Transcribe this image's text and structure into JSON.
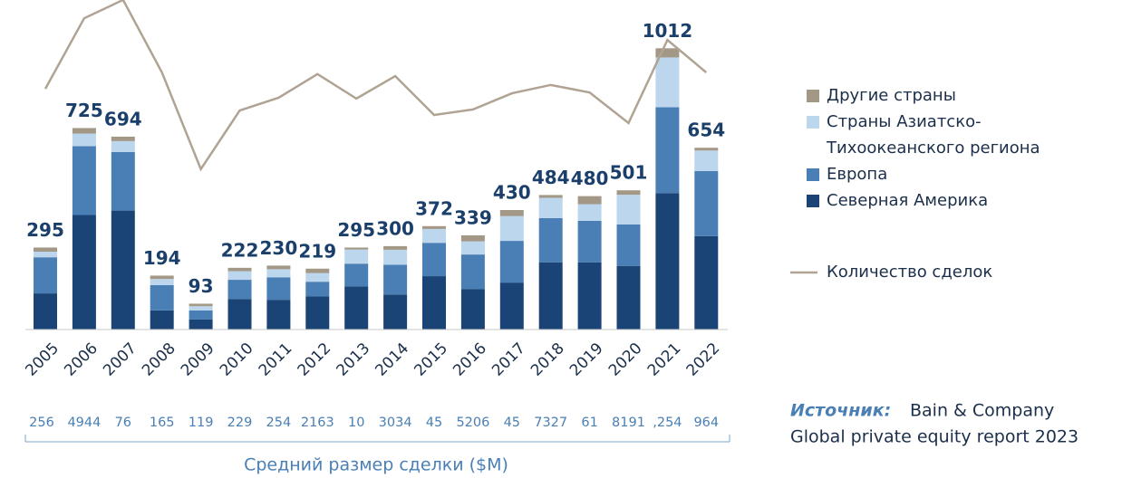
{
  "chart_data": {
    "type": "bar",
    "categories": [
      "2005",
      "2006",
      "2007",
      "2008",
      "2009",
      "2010",
      "2011",
      "2012",
      "2013",
      "2014",
      "2015",
      "2016",
      "2017",
      "2018",
      "2019",
      "2020",
      "2021",
      "2022"
    ],
    "totals": [
      295,
      725,
      694,
      194,
      93,
      222,
      230,
      219,
      295,
      300,
      372,
      339,
      430,
      484,
      480,
      501,
      1012,
      654
    ],
    "stacked": true,
    "series": [
      {
        "name": "Северная Америка",
        "color": "#1a4475",
        "values": [
          130,
          412,
          428,
          69,
          36,
          110,
          107,
          119,
          155,
          126,
          192,
          146,
          169,
          242,
          242,
          229,
          491,
          336
        ]
      },
      {
        "name": "Европа",
        "color": "#4a7fb5",
        "values": [
          130,
          248,
          211,
          91,
          33,
          69,
          81,
          53,
          82,
          107,
          120,
          124,
          150,
          159,
          149,
          149,
          309,
          234
        ]
      },
      {
        "name": "Страны Азиатско-Тихоокеанского региона",
        "color": "#bcd6ee",
        "values": [
          20,
          45,
          39,
          22,
          15,
          31,
          29,
          31,
          51,
          54,
          50,
          47,
          89,
          73,
          60,
          107,
          179,
          74
        ]
      },
      {
        "name": "Другие страны",
        "color": "#a39786",
        "values": [
          15,
          20,
          16,
          12,
          9,
          12,
          13,
          16,
          7,
          13,
          10,
          22,
          22,
          10,
          29,
          16,
          33,
          10
        ]
      }
    ],
    "line": {
      "name": "Количество сделок",
      "color": "#b0a393",
      "values": [
        866,
        1120,
        1186,
        925,
        577,
        788,
        834,
        919,
        831,
        912,
        772,
        792,
        850,
        880,
        853,
        743,
        1042,
        925
      ]
    },
    "avg_deal_size": {
      "label": "Средний размер сделки ($M)",
      "values": [
        "256",
        "4944",
        "76",
        "165",
        "119",
        "229",
        "254",
        "2163",
        "10",
        "3034",
        "45",
        "5206",
        "45",
        "7327",
        "61",
        "8191",
        ",254",
        "964"
      ]
    },
    "source": {
      "label": "Источник:",
      "lines": [
        "Bain & Company",
        "Global private equity report 2023"
      ]
    }
  }
}
